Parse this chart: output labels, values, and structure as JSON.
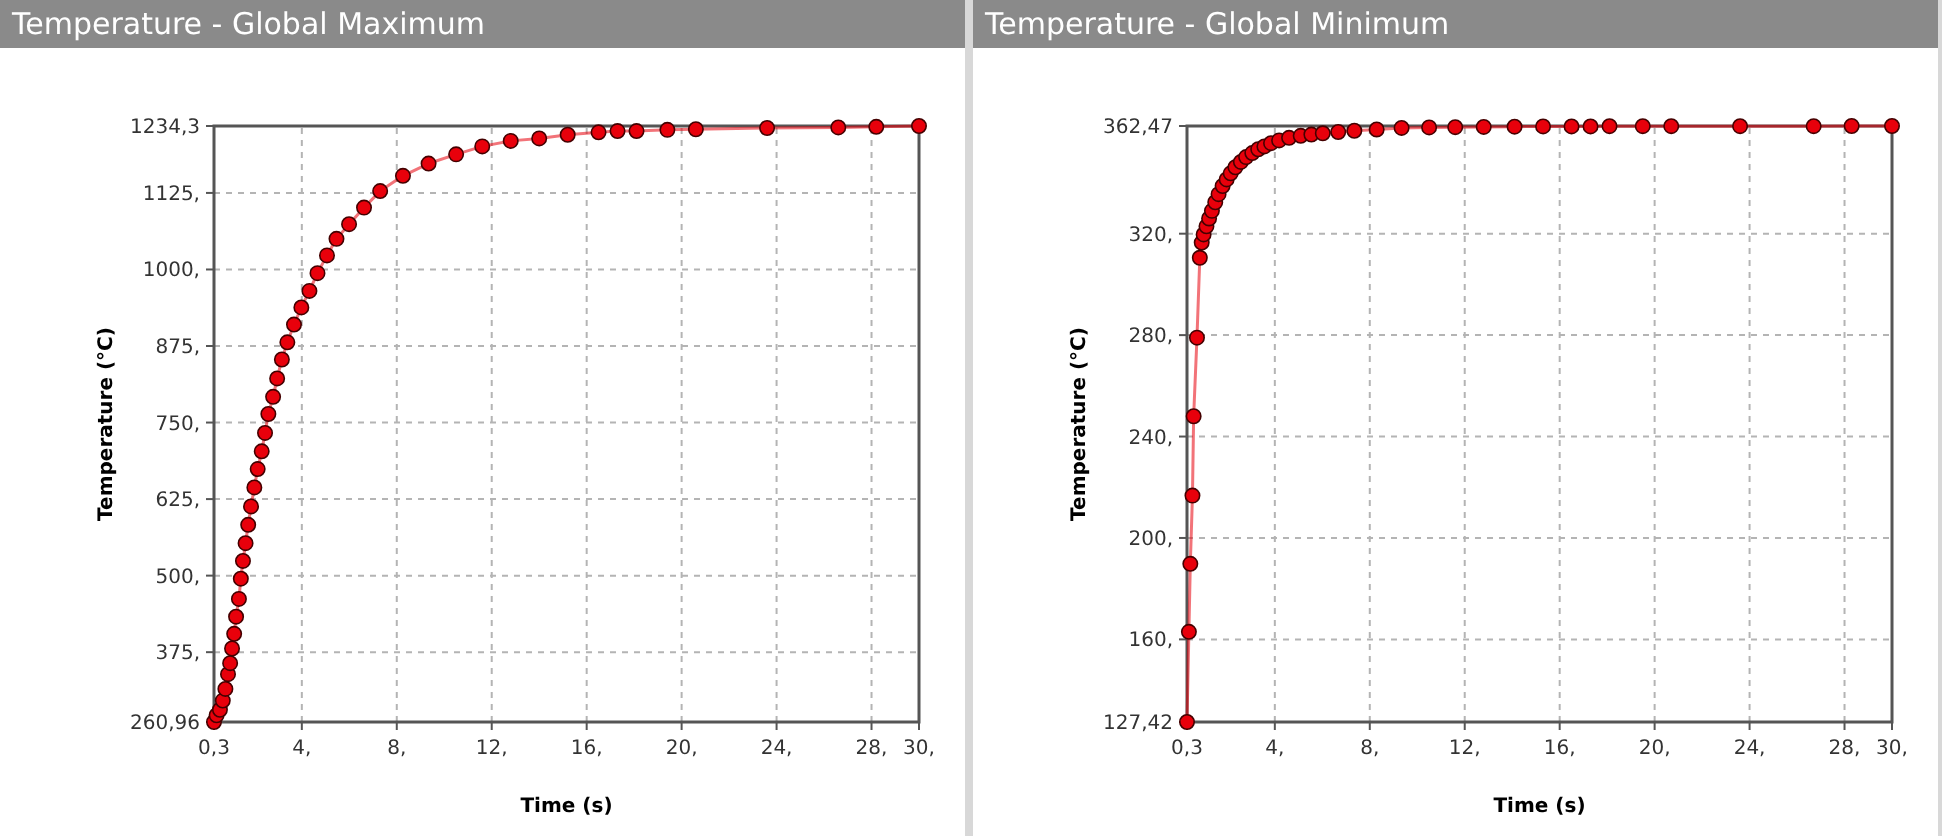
{
  "chart_data": [
    {
      "type": "line",
      "title": "Temperature - Global Maximum",
      "xlabel": "Time (s)",
      "ylabel": "Temperature (°C)",
      "grid": true,
      "marker": "circle",
      "line_style": "solid",
      "xlim": [
        0.3,
        30
      ],
      "ylim": [
        260.96,
        1234.3
      ],
      "xticks": [
        {
          "value": 0.3,
          "label": "0,3"
        },
        {
          "value": 4,
          "label": "4,"
        },
        {
          "value": 8,
          "label": "8,"
        },
        {
          "value": 12,
          "label": "12,"
        },
        {
          "value": 16,
          "label": "16,"
        },
        {
          "value": 20,
          "label": "20,"
        },
        {
          "value": 24,
          "label": "24,"
        },
        {
          "value": 28,
          "label": "28,"
        },
        {
          "value": 30,
          "label": "30,"
        }
      ],
      "yticks": [
        {
          "value": 260.96,
          "label": "260,96"
        },
        {
          "value": 375,
          "label": "375,"
        },
        {
          "value": 500,
          "label": "500,"
        },
        {
          "value": 625,
          "label": "625,"
        },
        {
          "value": 750,
          "label": "750,"
        },
        {
          "value": 875,
          "label": "875,"
        },
        {
          "value": 1000,
          "label": "1000,"
        },
        {
          "value": 1125,
          "label": "1125,"
        },
        {
          "value": 1234.3,
          "label": "1234,3"
        }
      ],
      "series": [
        {
          "color": "#e8000b",
          "x": [
            0.3,
            0.41,
            0.55,
            0.67,
            0.78,
            0.89,
            0.98,
            1.06,
            1.15,
            1.23,
            1.35,
            1.43,
            1.52,
            1.63,
            1.74,
            1.86,
            2.0,
            2.14,
            2.31,
            2.45,
            2.59,
            2.79,
            2.96,
            3.16,
            3.39,
            3.67,
            3.98,
            4.32,
            4.66,
            5.06,
            5.46,
            5.99,
            6.62,
            7.3,
            8.26,
            9.34,
            10.5,
            11.6,
            12.8,
            14.0,
            15.2,
            16.5,
            17.3,
            18.1,
            19.4,
            20.6,
            23.6,
            26.6,
            28.2,
            30
          ],
          "values": [
            260.96,
            272,
            281,
            296,
            315,
            339,
            357,
            381,
            405,
            433,
            462,
            495,
            524,
            553,
            583,
            613,
            644,
            674,
            703,
            733,
            764,
            792,
            822,
            853,
            881,
            910,
            938,
            965,
            994,
            1023,
            1050,
            1074,
            1101,
            1128,
            1153,
            1173,
            1188,
            1201,
            1210,
            1214,
            1220,
            1224,
            1226,
            1226,
            1228,
            1229,
            1231,
            1232,
            1233,
            1234.3
          ]
        }
      ]
    },
    {
      "type": "line",
      "title": "Temperature - Global Minimum",
      "xlabel": "Time (s)",
      "ylabel": "Temperature (°C)",
      "grid": true,
      "marker": "circle",
      "line_style": "solid",
      "xlim": [
        0.3,
        30
      ],
      "ylim": [
        127.42,
        362.47
      ],
      "xticks": [
        {
          "value": 0.3,
          "label": "0,3"
        },
        {
          "value": 4,
          "label": "4,"
        },
        {
          "value": 8,
          "label": "8,"
        },
        {
          "value": 12,
          "label": "12,"
        },
        {
          "value": 16,
          "label": "16,"
        },
        {
          "value": 20,
          "label": "20,"
        },
        {
          "value": 24,
          "label": "24,"
        },
        {
          "value": 28,
          "label": "28,"
        },
        {
          "value": 30,
          "label": "30,"
        }
      ],
      "yticks": [
        {
          "value": 127.42,
          "label": "127,42"
        },
        {
          "value": 160,
          "label": "160,"
        },
        {
          "value": 200,
          "label": "200,"
        },
        {
          "value": 240,
          "label": "240,"
        },
        {
          "value": 280,
          "label": "280,"
        },
        {
          "value": 320,
          "label": "320,"
        },
        {
          "value": 362.47,
          "label": "362,47"
        }
      ],
      "series": [
        {
          "color": "#e8000b",
          "x": [
            0.3,
            0.38,
            0.44,
            0.53,
            0.58,
            0.72,
            0.84,
            0.92,
            1.0,
            1.12,
            1.23,
            1.35,
            1.49,
            1.63,
            1.8,
            1.97,
            2.14,
            2.34,
            2.57,
            2.79,
            3.05,
            3.3,
            3.56,
            3.84,
            4.18,
            4.6,
            5.09,
            5.54,
            6.02,
            6.67,
            7.35,
            8.29,
            9.34,
            10.5,
            11.6,
            12.8,
            14.1,
            15.3,
            16.5,
            17.3,
            18.1,
            19.5,
            20.7,
            23.6,
            26.7,
            28.3,
            30
          ],
          "values": [
            127.42,
            163,
            189.8,
            216.7,
            248,
            279,
            310.5,
            316.5,
            319.7,
            322.9,
            326,
            329,
            332.4,
            335.6,
            338.8,
            341.4,
            343.8,
            346.2,
            348.3,
            350.2,
            351.8,
            353.3,
            354.4,
            355.7,
            356.8,
            357.8,
            358.6,
            359.1,
            359.6,
            360.1,
            360.6,
            361.1,
            361.7,
            361.9,
            362.0,
            362.1,
            362.2,
            362.3,
            362.3,
            362.3,
            362.4,
            362.4,
            362.4,
            362.4,
            362.4,
            362.47,
            362.47
          ]
        }
      ]
    }
  ]
}
